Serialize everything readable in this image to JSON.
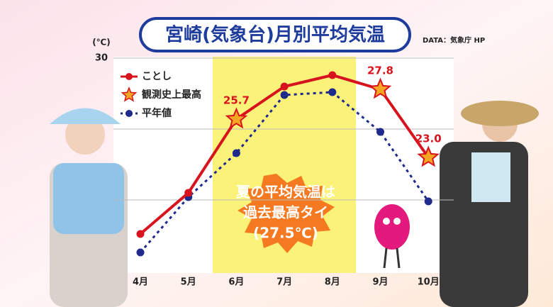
{
  "chart_data": {
    "type": "line",
    "title": "宮崎(気象台)月別平均気温",
    "source": "DATA：気象庁 HP",
    "y_unit": "(℃)",
    "categories": [
      "4月",
      "5月",
      "6月",
      "7月",
      "8月",
      "9月",
      "10月"
    ],
    "series": [
      {
        "name": "ことし",
        "color": "#d7141e",
        "style": "line",
        "values": [
          17.6,
          20.5,
          25.7,
          28.0,
          28.8,
          27.8,
          23.0
        ]
      },
      {
        "name": "観測史上最高",
        "color": "#f5a623",
        "style": "star",
        "values": [
          null,
          null,
          25.7,
          null,
          null,
          27.8,
          23.0
        ],
        "value_labels": [
          null,
          null,
          "25.7",
          null,
          null,
          "27.8",
          "23.0"
        ]
      },
      {
        "name": "平年値",
        "color": "#1e2a8c",
        "style": "dotted",
        "values": [
          16.3,
          20.2,
          23.3,
          27.4,
          27.6,
          24.8,
          19.9
        ]
      }
    ],
    "ylim": [
      15,
      30
    ],
    "yticks": [
      30
    ],
    "ygrid": [
      20,
      25
    ],
    "annotation": [
      "夏の平均気温は",
      "過去最高タイ",
      "(27.5℃)"
    ]
  }
}
